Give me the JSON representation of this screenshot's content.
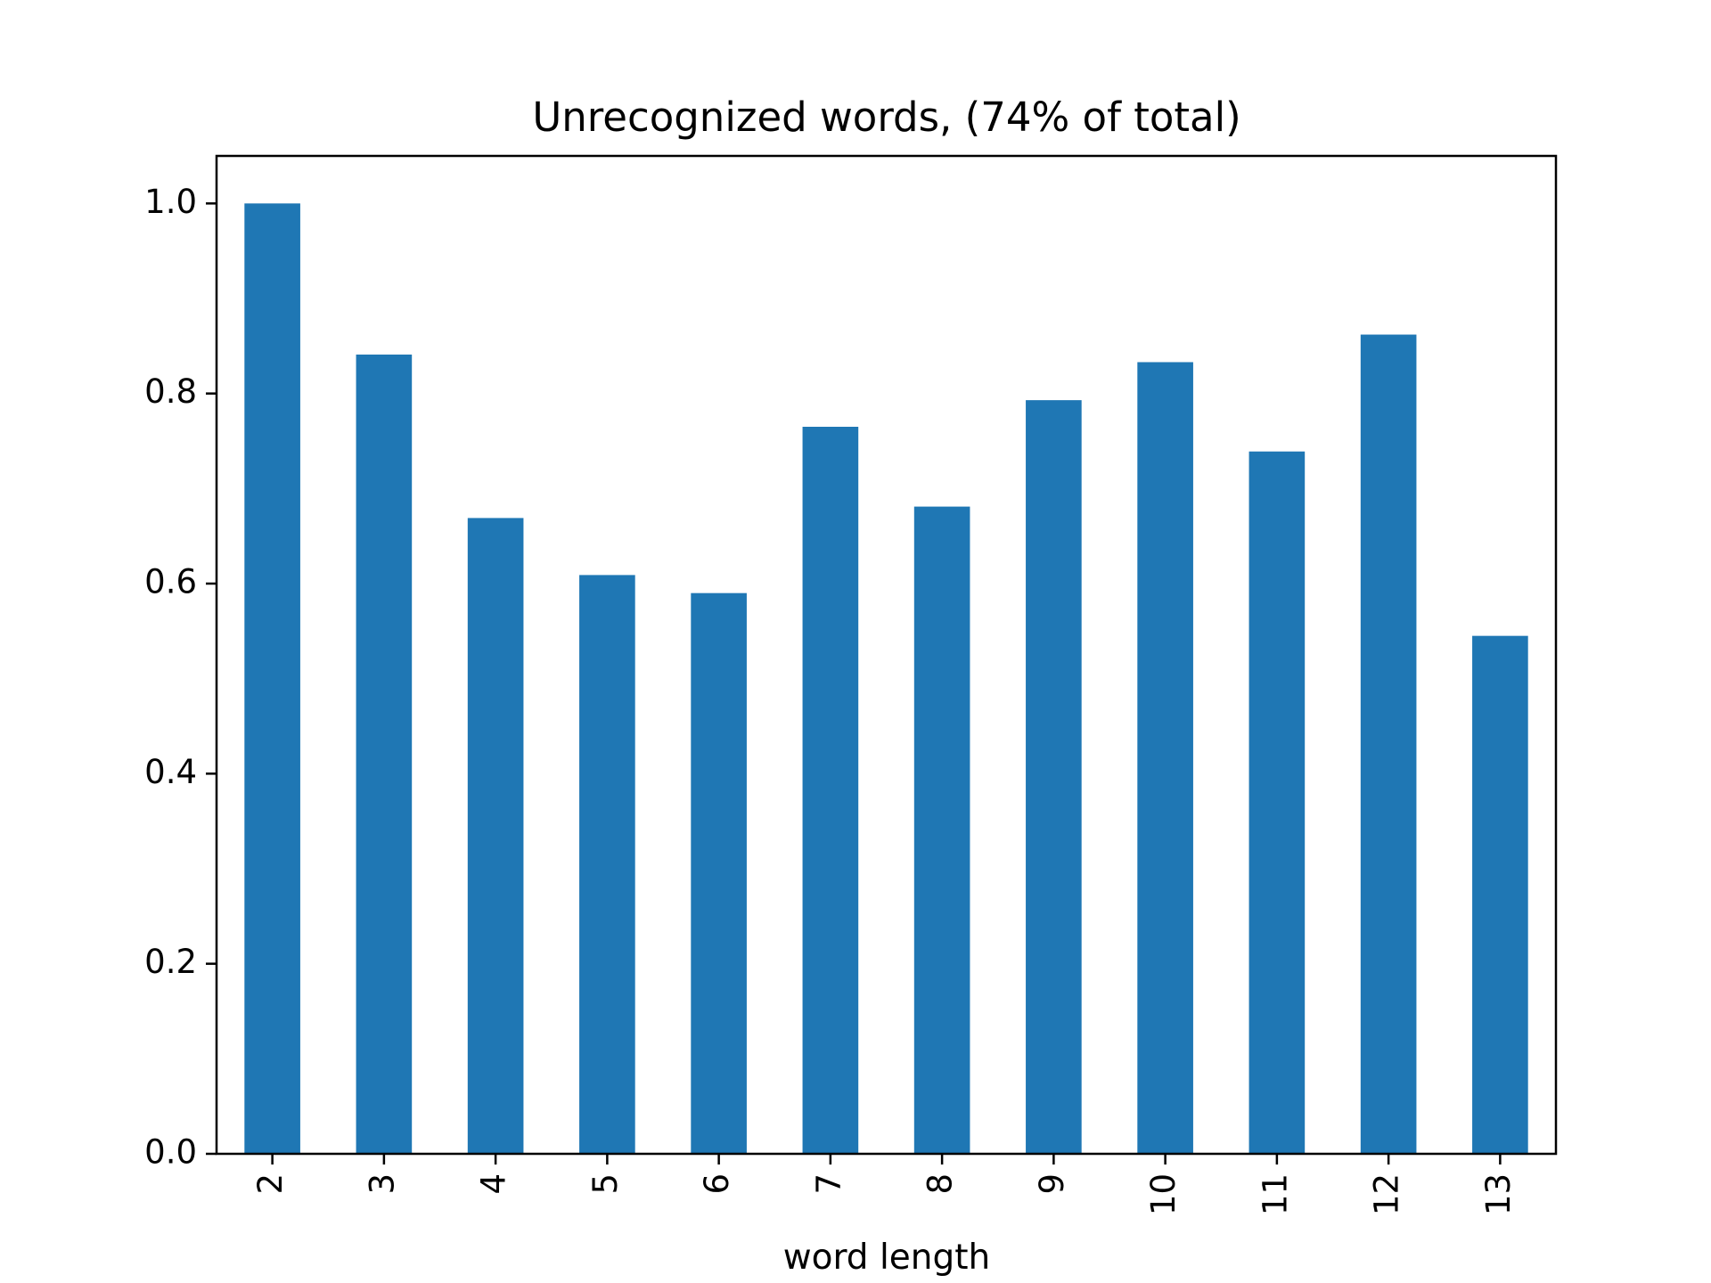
{
  "chart_data": {
    "type": "bar",
    "title": "Unrecognized words, (74% of total)",
    "xlabel": "word length",
    "ylabel": "",
    "categories": [
      "2",
      "3",
      "4",
      "5",
      "6",
      "7",
      "8",
      "9",
      "10",
      "11",
      "12",
      "13"
    ],
    "values": [
      1.0,
      0.841,
      0.669,
      0.609,
      0.59,
      0.765,
      0.681,
      0.793,
      0.833,
      0.739,
      0.862,
      0.545
    ],
    "ylim": [
      0,
      1.05
    ],
    "yticks": [
      "0.0",
      "0.2",
      "0.4",
      "0.6",
      "0.8",
      "1.0"
    ],
    "bar_color": "#1f77b4",
    "grid": false,
    "legend": null
  }
}
